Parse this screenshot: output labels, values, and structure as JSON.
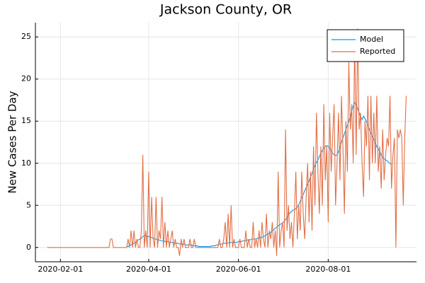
{
  "chart_data": {
    "type": "line",
    "title": "Jackson County, OR",
    "ylabel": "New Cases Per Day",
    "x": [
      "2020-01-23",
      "2020-01-24",
      "2020-01-25",
      "2020-01-26",
      "2020-01-27",
      "2020-01-28",
      "2020-01-29",
      "2020-01-30",
      "2020-01-31",
      "2020-02-01",
      "2020-02-02",
      "2020-02-03",
      "2020-02-04",
      "2020-02-05",
      "2020-02-06",
      "2020-02-07",
      "2020-02-08",
      "2020-02-09",
      "2020-02-10",
      "2020-02-11",
      "2020-02-12",
      "2020-02-13",
      "2020-02-14",
      "2020-02-15",
      "2020-02-16",
      "2020-02-17",
      "2020-02-18",
      "2020-02-19",
      "2020-02-20",
      "2020-02-21",
      "2020-02-22",
      "2020-02-23",
      "2020-02-24",
      "2020-02-25",
      "2020-02-26",
      "2020-02-27",
      "2020-02-28",
      "2020-02-29",
      "2020-03-01",
      "2020-03-02",
      "2020-03-03",
      "2020-03-04",
      "2020-03-05",
      "2020-03-06",
      "2020-03-07",
      "2020-03-08",
      "2020-03-09",
      "2020-03-10",
      "2020-03-11",
      "2020-03-12",
      "2020-03-13",
      "2020-03-14",
      "2020-03-15",
      "2020-03-16",
      "2020-03-17",
      "2020-03-18",
      "2020-03-19",
      "2020-03-20",
      "2020-03-21",
      "2020-03-22",
      "2020-03-23",
      "2020-03-24",
      "2020-03-25",
      "2020-03-26",
      "2020-03-27",
      "2020-03-28",
      "2020-03-29",
      "2020-03-30",
      "2020-03-31",
      "2020-04-01",
      "2020-04-02",
      "2020-04-03",
      "2020-04-04",
      "2020-04-05",
      "2020-04-06",
      "2020-04-07",
      "2020-04-08",
      "2020-04-09",
      "2020-04-10",
      "2020-04-11",
      "2020-04-12",
      "2020-04-13",
      "2020-04-14",
      "2020-04-15",
      "2020-04-16",
      "2020-04-17",
      "2020-04-18",
      "2020-04-19",
      "2020-04-20",
      "2020-04-21",
      "2020-04-22",
      "2020-04-23",
      "2020-04-24",
      "2020-04-25",
      "2020-04-26",
      "2020-04-27",
      "2020-04-28",
      "2020-04-29",
      "2020-04-30",
      "2020-05-01",
      "2020-05-02",
      "2020-05-03",
      "2020-05-04",
      "2020-05-05",
      "2020-05-06",
      "2020-05-07",
      "2020-05-08",
      "2020-05-09",
      "2020-05-10",
      "2020-05-11",
      "2020-05-12",
      "2020-05-13",
      "2020-05-14",
      "2020-05-15",
      "2020-05-16",
      "2020-05-17",
      "2020-05-18",
      "2020-05-19",
      "2020-05-20",
      "2020-05-21",
      "2020-05-22",
      "2020-05-23",
      "2020-05-24",
      "2020-05-25",
      "2020-05-26",
      "2020-05-27",
      "2020-05-28",
      "2020-05-29",
      "2020-05-30",
      "2020-05-31",
      "2020-06-01",
      "2020-06-02",
      "2020-06-03",
      "2020-06-04",
      "2020-06-05",
      "2020-06-06",
      "2020-06-07",
      "2020-06-08",
      "2020-06-09",
      "2020-06-10",
      "2020-06-11",
      "2020-06-12",
      "2020-06-13",
      "2020-06-14",
      "2020-06-15",
      "2020-06-16",
      "2020-06-17",
      "2020-06-18",
      "2020-06-19",
      "2020-06-20",
      "2020-06-21",
      "2020-06-22",
      "2020-06-23",
      "2020-06-24",
      "2020-06-25",
      "2020-06-26",
      "2020-06-27",
      "2020-06-28",
      "2020-06-29",
      "2020-06-30",
      "2020-07-01",
      "2020-07-02",
      "2020-07-03",
      "2020-07-04",
      "2020-07-05",
      "2020-07-06",
      "2020-07-07",
      "2020-07-08",
      "2020-07-09",
      "2020-07-10",
      "2020-07-11",
      "2020-07-12",
      "2020-07-13",
      "2020-07-14",
      "2020-07-15",
      "2020-07-16",
      "2020-07-17",
      "2020-07-18",
      "2020-07-19",
      "2020-07-20",
      "2020-07-21",
      "2020-07-22",
      "2020-07-23",
      "2020-07-24",
      "2020-07-25",
      "2020-07-26",
      "2020-07-27",
      "2020-07-28",
      "2020-07-29",
      "2020-07-30",
      "2020-07-31",
      "2020-08-01",
      "2020-08-02",
      "2020-08-03",
      "2020-08-04",
      "2020-08-05",
      "2020-08-06",
      "2020-08-07",
      "2020-08-08",
      "2020-08-09",
      "2020-08-10",
      "2020-08-11",
      "2020-08-12",
      "2020-08-13",
      "2020-08-14",
      "2020-08-15",
      "2020-08-16",
      "2020-08-17",
      "2020-08-18",
      "2020-08-19",
      "2020-08-20",
      "2020-08-21",
      "2020-08-22",
      "2020-08-23",
      "2020-08-24",
      "2020-08-25",
      "2020-08-26",
      "2020-08-27",
      "2020-08-28",
      "2020-08-29",
      "2020-08-30",
      "2020-08-31",
      "2020-09-01",
      "2020-09-02",
      "2020-09-03",
      "2020-09-04",
      "2020-09-05",
      "2020-09-06",
      "2020-09-07",
      "2020-09-08",
      "2020-09-09",
      "2020-09-10",
      "2020-09-11",
      "2020-09-12",
      "2020-09-13",
      "2020-09-14",
      "2020-09-15",
      "2020-09-16",
      "2020-09-17",
      "2020-09-18",
      "2020-09-19",
      "2020-09-20",
      "2020-09-21",
      "2020-09-22",
      "2020-09-23"
    ],
    "series": [
      {
        "name": "Model",
        "color": "#009af9",
        "values": [
          null,
          null,
          null,
          null,
          null,
          null,
          null,
          null,
          null,
          null,
          null,
          null,
          null,
          null,
          null,
          null,
          null,
          null,
          null,
          null,
          null,
          null,
          null,
          null,
          null,
          null,
          null,
          null,
          null,
          null,
          null,
          null,
          null,
          null,
          null,
          null,
          null,
          null,
          null,
          null,
          null,
          null,
          null,
          null,
          null,
          null,
          null,
          null,
          null,
          null,
          null,
          null,
          null,
          null,
          0.1,
          0.1,
          0.2,
          0.3,
          0.4,
          0.5,
          0.6,
          0.8,
          0.9,
          1.0,
          1.1,
          1.3,
          1.4,
          1.4,
          1.3,
          1.3,
          1.2,
          1.2,
          1.1,
          1.0,
          1.0,
          0.9,
          0.9,
          0.8,
          0.8,
          0.8,
          0.7,
          0.7,
          0.7,
          0.6,
          0.6,
          0.6,
          0.5,
          0.5,
          0.5,
          0.5,
          0.4,
          0.4,
          0.4,
          0.4,
          0.3,
          0.3,
          0.3,
          0.3,
          0.3,
          0.2,
          0.2,
          0.2,
          0.2,
          0.1,
          0.1,
          0.1,
          0.1,
          0.1,
          0.1,
          0.1,
          0.1,
          0.1,
          0.2,
          0.2,
          0.2,
          0.3,
          0.3,
          0.4,
          0.4,
          0.4,
          0.5,
          0.5,
          0.5,
          0.5,
          0.6,
          0.6,
          0.6,
          0.6,
          0.6,
          0.6,
          0.7,
          0.7,
          0.7,
          0.8,
          0.8,
          0.8,
          0.9,
          0.9,
          0.9,
          1.0,
          1.0,
          1.0,
          1.0,
          1.1,
          1.1,
          1.2,
          1.2,
          1.3,
          1.4,
          1.5,
          1.6,
          1.7,
          1.8,
          2.0,
          2.1,
          2.3,
          2.4,
          2.6,
          2.7,
          2.8,
          2.9,
          3.1,
          3.3,
          3.6,
          3.9,
          4.1,
          4.3,
          4.4,
          4.5,
          4.6,
          4.8,
          5.1,
          5.5,
          5.9,
          6.3,
          6.7,
          7.1,
          7.5,
          7.9,
          8.4,
          8.8,
          9.3,
          9.7,
          10.1,
          10.4,
          10.8,
          11.2,
          11.5,
          11.8,
          12.0,
          12.1,
          12.0,
          11.8,
          11.5,
          11.2,
          11.0,
          10.9,
          11.0,
          11.4,
          11.9,
          12.5,
          13.0,
          13.5,
          14.0,
          14.5,
          15.0,
          15.6,
          16.2,
          16.8,
          17.2,
          17.0,
          16.5,
          16.0,
          15.5,
          15.2,
          15.6,
          15.3,
          14.9,
          14.5,
          14.0,
          13.6,
          13.2,
          12.8,
          12.4,
          12.0,
          11.7,
          11.4,
          11.0,
          10.7,
          10.5,
          10.4,
          10.3,
          10.1,
          10.0,
          9.8,
          null,
          null,
          null,
          null,
          null,
          null,
          null,
          null,
          null,
          null
        ]
      },
      {
        "name": "Reported",
        "color": "#e26f46",
        "values": [
          0,
          0,
          0,
          0,
          0,
          0,
          0,
          0,
          0,
          0,
          0,
          0,
          0,
          0,
          0,
          0,
          0,
          0,
          0,
          0,
          0,
          0,
          0,
          0,
          0,
          0,
          0,
          0,
          0,
          0,
          0,
          0,
          0,
          0,
          0,
          0,
          0,
          0,
          0,
          0,
          0,
          0,
          0,
          1,
          1,
          0,
          0,
          0,
          0,
          0,
          0,
          0,
          0,
          0,
          0,
          1,
          0,
          2,
          0,
          2,
          0,
          1,
          0,
          0,
          2,
          11,
          0,
          2,
          0,
          9,
          0,
          6,
          1,
          0,
          6,
          0,
          2,
          1,
          6,
          0,
          3,
          0,
          2,
          0,
          1,
          2,
          0,
          1,
          0,
          0,
          -1,
          1,
          0,
          1,
          0,
          0,
          0,
          1,
          0,
          0,
          1,
          0,
          0,
          0,
          0,
          0,
          0,
          0,
          0,
          0,
          0,
          0,
          0,
          0,
          0,
          0,
          0,
          1,
          0,
          0,
          1,
          3,
          0,
          4,
          0,
          5,
          0,
          1,
          0,
          0,
          0,
          1,
          0,
          0,
          0,
          2,
          0,
          1,
          0,
          0,
          3,
          0,
          1,
          0,
          2,
          0,
          3,
          1,
          0,
          4,
          0,
          2,
          1,
          3,
          0,
          2,
          -1,
          9,
          0,
          2,
          3,
          0,
          14,
          2,
          5,
          1,
          3,
          0,
          4,
          9,
          1,
          5,
          2,
          9,
          4,
          1,
          6,
          10,
          3,
          9,
          2,
          12,
          5,
          16,
          9,
          4,
          12,
          5,
          17,
          8,
          12,
          3,
          16,
          9,
          13,
          17,
          5,
          10,
          16,
          8,
          18,
          12,
          4,
          15,
          9,
          22,
          14,
          17,
          10,
          25,
          11,
          26,
          14,
          16,
          10,
          6,
          15,
          12,
          18,
          8,
          18,
          10,
          16,
          10,
          18,
          9,
          12,
          7,
          14,
          8,
          11,
          13,
          12,
          18,
          7,
          11,
          13,
          0,
          14,
          13,
          14,
          13,
          5,
          13,
          18
        ]
      }
    ],
    "xlim": [
      "2020-01-15",
      "2020-09-30"
    ],
    "xticks": [
      "2020-02-01",
      "2020-04-01",
      "2020-06-01",
      "2020-08-01"
    ],
    "ylim": [
      -1.7,
      26.7
    ],
    "yticks": [
      0,
      5,
      10,
      15,
      20,
      25
    ],
    "grid": true,
    "legend": "top-right"
  }
}
